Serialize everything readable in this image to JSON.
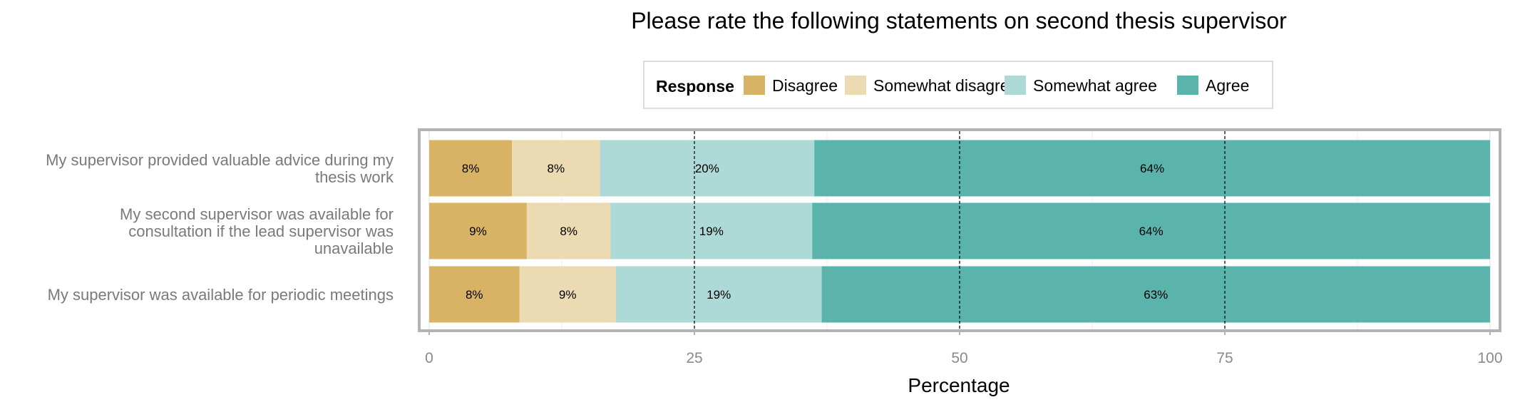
{
  "chart_data": {
    "type": "bar",
    "orientation": "horizontal",
    "stacked": true,
    "title": "Please rate the following statements on second thesis supervisor",
    "xlabel": "Percentage",
    "ylabel": "",
    "xlim": [
      0,
      100
    ],
    "xticks": [
      "0",
      "25",
      "50",
      "75",
      "100"
    ],
    "grid": true,
    "legend": {
      "title": "Response",
      "position": "top",
      "entries": [
        "Disagree",
        "Somewhat disagree",
        "Somewhat agree",
        "Agree"
      ]
    },
    "categories": [
      "My supervisor provided valuable advice during my thesis work",
      "My second supervisor was available for consultation if the lead supervisor was unavailable",
      "My supervisor was available for periodic meetings"
    ],
    "series": [
      {
        "name": "Disagree",
        "color": "#D8B365",
        "values": [
          7.8,
          9.2,
          8.5
        ],
        "labels": [
          "8%",
          "9%",
          "8%"
        ]
      },
      {
        "name": "Somewhat disagree",
        "color": "#EBDAB2",
        "values": [
          8.3,
          7.9,
          9.1
        ],
        "labels": [
          "8%",
          "8%",
          "9%"
        ]
      },
      {
        "name": "Somewhat agree",
        "color": "#ADD9D6",
        "values": [
          20.2,
          19.0,
          19.4
        ],
        "labels": [
          "20%",
          "19%",
          "19%"
        ]
      },
      {
        "name": "Agree",
        "color": "#5AB4AC",
        "values": [
          63.7,
          63.9,
          63.0
        ],
        "labels": [
          "64%",
          "64%",
          "63%"
        ]
      }
    ]
  }
}
